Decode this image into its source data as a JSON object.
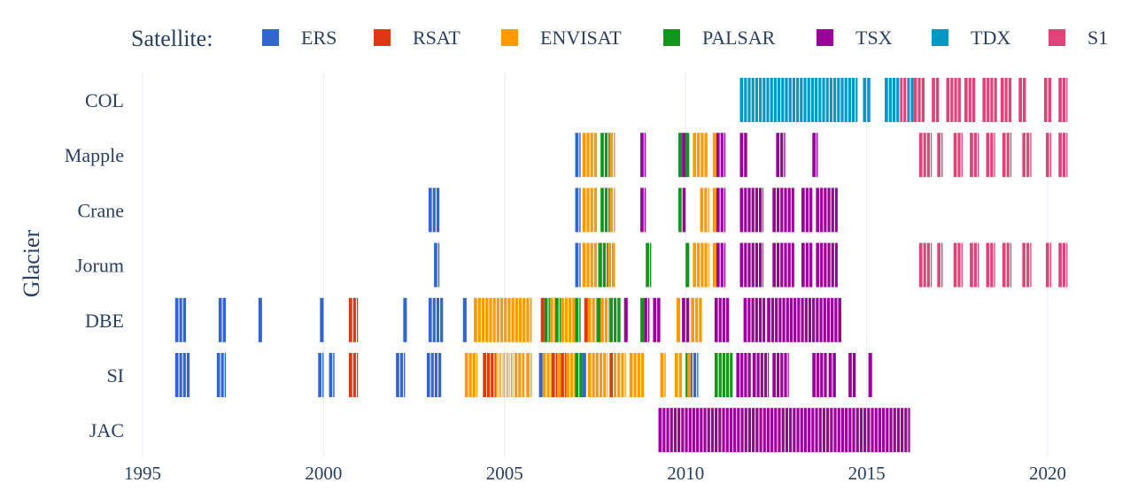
{
  "chart_data": {
    "type": "timeline",
    "ylabel": "Glacier",
    "legend": {
      "title": "Satellite:",
      "placement": "top",
      "items": [
        {
          "name": "ERS",
          "color": "#3366cc"
        },
        {
          "name": "RSAT",
          "color": "#dc3912"
        },
        {
          "name": "ENVISAT",
          "color": "#ff9900"
        },
        {
          "name": "PALSAR",
          "color": "#109618"
        },
        {
          "name": "TSX",
          "color": "#990099"
        },
        {
          "name": "TDX",
          "color": "#0099c6"
        },
        {
          "name": "S1",
          "color": "#dd4477"
        }
      ]
    },
    "xlim": [
      1995,
      2021
    ],
    "xticks": [
      1995,
      2000,
      2005,
      2010,
      2015,
      2020
    ],
    "grid": true,
    "categories": [
      "COL",
      "Mapple",
      "Crane",
      "Jorum",
      "DBE",
      "SI",
      "JAC"
    ],
    "series": [
      {
        "glacier": "COL",
        "satellite": "TDX",
        "ranges": [
          [
            2011.5,
            2014.75
          ],
          [
            2014.9,
            2015.1
          ],
          [
            2015.5,
            2015.95
          ],
          [
            2016.0,
            2016.3
          ]
        ]
      },
      {
        "glacier": "COL",
        "satellite": "S1",
        "ranges": [
          [
            2015.9,
            2016.15
          ],
          [
            2016.3,
            2016.6
          ],
          [
            2016.8,
            2017.0
          ],
          [
            2017.2,
            2017.6
          ],
          [
            2017.7,
            2018.0
          ],
          [
            2018.2,
            2018.6
          ],
          [
            2018.7,
            2019.0
          ],
          [
            2019.2,
            2019.4
          ],
          [
            2019.9,
            2020.1
          ],
          [
            2020.3,
            2020.55
          ]
        ]
      },
      {
        "glacier": "Mapple",
        "satellite": "ERS",
        "ranges": [
          [
            2006.95,
            2007.1
          ]
        ]
      },
      {
        "glacier": "Mapple",
        "satellite": "ENVISAT",
        "ranges": [
          [
            2007.15,
            2007.55
          ],
          [
            2007.9,
            2008.05
          ],
          [
            2010.2,
            2010.6
          ],
          [
            2010.75,
            2010.85
          ]
        ]
      },
      {
        "glacier": "Mapple",
        "satellite": "PALSAR",
        "ranges": [
          [
            2007.65,
            2007.9
          ],
          [
            2009.8,
            2009.9
          ],
          [
            2010.0,
            2010.1
          ]
        ]
      },
      {
        "glacier": "Mapple",
        "satellite": "TSX",
        "ranges": [
          [
            2008.75,
            2008.9
          ],
          [
            2009.9,
            2010.0
          ],
          [
            2010.85,
            2011.1
          ],
          [
            2011.5,
            2011.7
          ],
          [
            2012.5,
            2012.75
          ],
          [
            2013.5,
            2013.65
          ]
        ]
      },
      {
        "glacier": "Mapple",
        "satellite": "S1",
        "ranges": [
          [
            2016.45,
            2016.8
          ],
          [
            2016.95,
            2017.1
          ],
          [
            2017.4,
            2017.65
          ],
          [
            2017.85,
            2018.1
          ],
          [
            2018.3,
            2018.55
          ],
          [
            2018.75,
            2019.0
          ],
          [
            2019.3,
            2019.55
          ],
          [
            2019.95,
            2020.1
          ],
          [
            2020.3,
            2020.55
          ]
        ]
      },
      {
        "glacier": "Crane",
        "satellite": "ERS",
        "ranges": [
          [
            2002.9,
            2003.2
          ],
          [
            2006.95,
            2007.1
          ]
        ]
      },
      {
        "glacier": "Crane",
        "satellite": "ENVISAT",
        "ranges": [
          [
            2007.15,
            2007.55
          ],
          [
            2007.9,
            2008.05
          ],
          [
            2010.4,
            2010.65
          ],
          [
            2010.75,
            2010.85
          ]
        ]
      },
      {
        "glacier": "Crane",
        "satellite": "PALSAR",
        "ranges": [
          [
            2007.65,
            2007.9
          ],
          [
            2009.8,
            2009.95
          ]
        ]
      },
      {
        "glacier": "Crane",
        "satellite": "TSX",
        "ranges": [
          [
            2008.75,
            2008.9
          ],
          [
            2009.9,
            2010.0
          ],
          [
            2010.85,
            2011.1
          ],
          [
            2011.5,
            2012.15
          ],
          [
            2012.4,
            2013.0
          ],
          [
            2013.2,
            2013.5
          ],
          [
            2013.6,
            2014.2
          ]
        ]
      },
      {
        "glacier": "Jorum",
        "satellite": "ERS",
        "ranges": [
          [
            2003.05,
            2003.2
          ],
          [
            2006.95,
            2007.1
          ]
        ]
      },
      {
        "glacier": "Jorum",
        "satellite": "ENVISAT",
        "ranges": [
          [
            2007.15,
            2007.6
          ],
          [
            2007.85,
            2008.05
          ],
          [
            2010.2,
            2010.65
          ],
          [
            2010.75,
            2010.85
          ]
        ]
      },
      {
        "glacier": "Jorum",
        "satellite": "PALSAR",
        "ranges": [
          [
            2007.6,
            2007.85
          ],
          [
            2008.9,
            2009.05
          ],
          [
            2010.0,
            2010.1
          ]
        ]
      },
      {
        "glacier": "Jorum",
        "satellite": "TSX",
        "ranges": [
          [
            2010.85,
            2011.1
          ],
          [
            2011.5,
            2012.15
          ],
          [
            2012.4,
            2013.0
          ],
          [
            2013.2,
            2013.5
          ],
          [
            2013.6,
            2014.2
          ]
        ]
      },
      {
        "glacier": "Jorum",
        "satellite": "S1",
        "ranges": [
          [
            2016.45,
            2016.8
          ],
          [
            2016.95,
            2017.1
          ],
          [
            2017.4,
            2017.65
          ],
          [
            2017.85,
            2018.1
          ],
          [
            2018.3,
            2018.55
          ],
          [
            2018.75,
            2019.0
          ],
          [
            2019.3,
            2019.55
          ],
          [
            2019.95,
            2020.1
          ],
          [
            2020.3,
            2020.55
          ]
        ]
      },
      {
        "glacier": "DBE",
        "satellite": "ERS",
        "ranges": [
          [
            1995.9,
            1996.2
          ],
          [
            1997.1,
            1997.3
          ],
          [
            1998.2,
            1998.3
          ],
          [
            1999.9,
            2000.0
          ],
          [
            2002.2,
            2002.3
          ],
          [
            2002.9,
            2003.3
          ],
          [
            2003.85,
            2003.95
          ]
        ]
      },
      {
        "glacier": "DBE",
        "satellite": "RSAT",
        "ranges": [
          [
            2000.7,
            2000.95
          ],
          [
            2006.0,
            2006.1
          ],
          [
            2006.3,
            2006.4
          ],
          [
            2006.8,
            2006.9
          ],
          [
            2007.2,
            2007.3
          ]
        ]
      },
      {
        "glacier": "DBE",
        "satellite": "ENVISAT",
        "ranges": [
          [
            2004.15,
            2005.75
          ],
          [
            2006.25,
            2006.45
          ],
          [
            2006.55,
            2006.95
          ],
          [
            2007.3,
            2007.55
          ],
          [
            2007.65,
            2007.9
          ],
          [
            2009.75,
            2009.85
          ],
          [
            2010.15,
            2010.45
          ]
        ]
      },
      {
        "glacier": "DBE",
        "satellite": "PALSAR",
        "ranges": [
          [
            2006.1,
            2006.25
          ],
          [
            2006.4,
            2006.55
          ],
          [
            2006.95,
            2007.1
          ],
          [
            2007.55,
            2007.65
          ],
          [
            2007.9,
            2008.2
          ],
          [
            2008.75,
            2008.85
          ]
        ]
      },
      {
        "glacier": "DBE",
        "satellite": "TSX",
        "ranges": [
          [
            2008.3,
            2008.4
          ],
          [
            2008.85,
            2009.0
          ],
          [
            2009.1,
            2009.3
          ],
          [
            2009.9,
            2010.1
          ],
          [
            2010.8,
            2011.2
          ],
          [
            2011.6,
            2012.2
          ],
          [
            2012.25,
            2014.3
          ]
        ]
      },
      {
        "glacier": "SI",
        "satellite": "ERS",
        "ranges": [
          [
            1995.9,
            1996.3
          ],
          [
            1997.05,
            1997.3
          ],
          [
            1999.85,
            2000.0
          ],
          [
            2000.15,
            2000.3
          ],
          [
            2002.0,
            2002.25
          ],
          [
            2002.85,
            2003.25
          ],
          [
            2005.95,
            2006.05
          ],
          [
            2007.15,
            2007.25
          ],
          [
            2010.1,
            2010.35
          ]
        ]
      },
      {
        "glacier": "SI",
        "satellite": "RSAT",
        "ranges": [
          [
            2000.7,
            2000.95
          ],
          [
            2004.4,
            2005.3
          ],
          [
            2006.3,
            2006.45
          ],
          [
            2006.55,
            2006.7
          ],
          [
            2007.9,
            2008.05
          ]
        ]
      },
      {
        "glacier": "SI",
        "satellite": "ENVISAT",
        "ranges": [
          [
            2003.9,
            2004.25
          ],
          [
            2004.75,
            2005.55
          ],
          [
            2005.6,
            2005.75
          ],
          [
            2006.05,
            2006.3
          ],
          [
            2006.45,
            2006.55
          ],
          [
            2006.7,
            2006.95
          ],
          [
            2007.3,
            2007.85
          ],
          [
            2008.0,
            2008.35
          ],
          [
            2008.45,
            2008.85
          ],
          [
            2009.3,
            2009.45
          ],
          [
            2009.7,
            2009.9
          ],
          [
            2010.05,
            2010.15
          ]
        ]
      },
      {
        "glacier": "SI",
        "satellite": "PALSAR",
        "ranges": [
          [
            2006.95,
            2007.15
          ],
          [
            2010.0,
            2010.05
          ],
          [
            2010.8,
            2011.3
          ]
        ]
      },
      {
        "glacier": "SI",
        "satellite": "TSX",
        "ranges": [
          [
            2011.4,
            2011.8
          ],
          [
            2011.85,
            2012.3
          ],
          [
            2012.4,
            2012.85
          ],
          [
            2013.5,
            2013.9
          ],
          [
            2013.95,
            2014.15
          ],
          [
            2014.5,
            2014.7
          ],
          [
            2015.05,
            2015.15
          ]
        ]
      },
      {
        "glacier": "JAC",
        "satellite": "TSX",
        "ranges": [
          [
            2009.25,
            2016.2
          ]
        ]
      }
    ]
  }
}
